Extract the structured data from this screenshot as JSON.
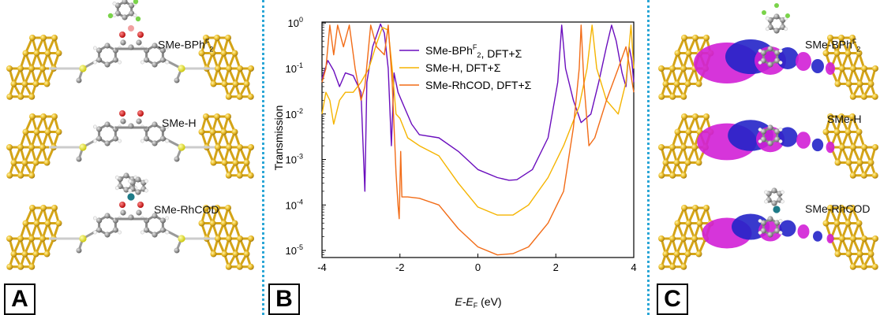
{
  "panels": {
    "a_letter": "A",
    "b_letter": "B",
    "c_letter": "C"
  },
  "molecules": {
    "bph": "SMe-BPh",
    "bph_sup": "F",
    "bph_sub": "2",
    "h": "SMe-H",
    "rhcod": "SMe-RhCOD"
  },
  "colors": {
    "gold": "#e8b923",
    "divider": "#2aa6d6",
    "density_pos": "#d21fd6",
    "density_neg": "#2323c8"
  },
  "chart_data": {
    "type": "line",
    "title": "",
    "xlabel": "E-E",
    "xlabel_sub": "F",
    "xlabel_unit": " (eV)",
    "ylabel": "Transmission",
    "xlim": [
      -4,
      4
    ],
    "ylim": [
      7e-06,
      1.05
    ],
    "yscale": "log",
    "xticks": [
      -4,
      -2,
      0,
      2,
      4
    ],
    "yticks": [
      {
        "value": 1,
        "label": "10",
        "exp": "0"
      },
      {
        "value": 0.1,
        "label": "10",
        "exp": "-1"
      },
      {
        "value": 0.01,
        "label": "10",
        "exp": "-2"
      },
      {
        "value": 0.001,
        "label": "10",
        "exp": "-3"
      },
      {
        "value": 0.0001,
        "label": "10",
        "exp": "-4"
      },
      {
        "value": 1e-05,
        "label": "10",
        "exp": "-5"
      }
    ],
    "grid": false,
    "legend_position": "top-center",
    "series": [
      {
        "name": "SMe-BPh",
        "name_sup": "F",
        "name_sub": "2",
        "name_rest": ", DFT+Σ",
        "color": "#6a0dbd",
        "points": [
          [
            -4.0,
            0.06
          ],
          [
            -3.85,
            0.15
          ],
          [
            -3.7,
            0.09
          ],
          [
            -3.55,
            0.04
          ],
          [
            -3.4,
            0.08
          ],
          [
            -3.2,
            0.07
          ],
          [
            -3.0,
            0.03
          ],
          [
            -2.9,
            0.0002
          ],
          [
            -2.85,
            0.05
          ],
          [
            -2.7,
            0.3
          ],
          [
            -2.5,
            0.95
          ],
          [
            -2.4,
            0.6
          ],
          [
            -2.3,
            0.1
          ],
          [
            -2.22,
            0.002
          ],
          [
            -2.15,
            0.08
          ],
          [
            -2.05,
            0.03
          ],
          [
            -1.9,
            0.015
          ],
          [
            -1.7,
            0.006
          ],
          [
            -1.5,
            0.0035
          ],
          [
            -1.0,
            0.003
          ],
          [
            -0.5,
            0.0015
          ],
          [
            0.0,
            0.0006
          ],
          [
            0.5,
            0.0004
          ],
          [
            0.8,
            0.00035
          ],
          [
            1.0,
            0.00036
          ],
          [
            1.4,
            0.0006
          ],
          [
            1.8,
            0.003
          ],
          [
            2.05,
            0.05
          ],
          [
            2.15,
            0.9
          ],
          [
            2.25,
            0.1
          ],
          [
            2.45,
            0.02
          ],
          [
            2.65,
            0.0065
          ],
          [
            2.9,
            0.01
          ],
          [
            3.1,
            0.05
          ],
          [
            3.3,
            0.3
          ],
          [
            3.43,
            0.9
          ],
          [
            3.55,
            0.4
          ],
          [
            3.7,
            0.08
          ],
          [
            3.8,
            0.04
          ],
          [
            3.88,
            0.3
          ],
          [
            3.95,
            0.15
          ],
          [
            4.0,
            0.05
          ]
        ]
      },
      {
        "name": "SMe-H",
        "name_rest": ", DFT+Σ",
        "color": "#f5b400",
        "points": [
          [
            -4.0,
            0.01
          ],
          [
            -3.9,
            0.03
          ],
          [
            -3.8,
            0.02
          ],
          [
            -3.7,
            0.006
          ],
          [
            -3.55,
            0.02
          ],
          [
            -3.4,
            0.03
          ],
          [
            -3.2,
            0.03
          ],
          [
            -3.0,
            0.05
          ],
          [
            -2.8,
            0.1
          ],
          [
            -2.6,
            0.35
          ],
          [
            -2.45,
            0.8
          ],
          [
            -2.3,
            0.7
          ],
          [
            -2.2,
            0.1
          ],
          [
            -2.1,
            0.01
          ],
          [
            -2.0,
            0.008
          ],
          [
            -1.8,
            0.003
          ],
          [
            -1.5,
            0.002
          ],
          [
            -1.0,
            0.0012
          ],
          [
            -0.5,
            0.0003
          ],
          [
            0.0,
            9e-05
          ],
          [
            0.5,
            6e-05
          ],
          [
            0.9,
            6e-05
          ],
          [
            1.3,
            0.0001
          ],
          [
            1.8,
            0.0004
          ],
          [
            2.2,
            0.002
          ],
          [
            2.6,
            0.015
          ],
          [
            2.8,
            0.1
          ],
          [
            2.93,
            0.9
          ],
          [
            3.05,
            0.1
          ],
          [
            3.3,
            0.02
          ],
          [
            3.6,
            0.01
          ],
          [
            3.8,
            0.05
          ],
          [
            3.93,
            0.9
          ],
          [
            4.0,
            0.1
          ]
        ]
      },
      {
        "name": "SMe-RhCOD",
        "name_rest": ", DFT+Σ",
        "color": "#f26c17",
        "points": [
          [
            -4.0,
            0.05
          ],
          [
            -3.9,
            0.1
          ],
          [
            -3.8,
            0.9
          ],
          [
            -3.7,
            0.2
          ],
          [
            -3.6,
            0.9
          ],
          [
            -3.45,
            0.3
          ],
          [
            -3.3,
            0.9
          ],
          [
            -3.15,
            0.1
          ],
          [
            -3.0,
            0.02
          ],
          [
            -2.9,
            0.04
          ],
          [
            -2.75,
            0.9
          ],
          [
            -2.6,
            0.3
          ],
          [
            -2.4,
            0.2
          ],
          [
            -2.3,
            0.9
          ],
          [
            -2.2,
            0.05
          ],
          [
            -2.1,
            0.0005
          ],
          [
            -2.05,
            0.0001
          ],
          [
            -2.02,
            5e-05
          ],
          [
            -1.98,
            0.0015
          ],
          [
            -1.95,
            0.00015
          ],
          [
            -1.8,
            0.00015
          ],
          [
            -1.5,
            0.00014
          ],
          [
            -1.0,
            0.0001
          ],
          [
            -0.5,
            3e-05
          ],
          [
            0.0,
            1.2e-05
          ],
          [
            0.5,
            8e-06
          ],
          [
            0.9,
            8.5e-06
          ],
          [
            1.3,
            1.2e-05
          ],
          [
            1.8,
            4e-05
          ],
          [
            2.2,
            0.0002
          ],
          [
            2.45,
            0.005
          ],
          [
            2.6,
            0.1
          ],
          [
            2.65,
            0.9
          ],
          [
            2.72,
            0.05
          ],
          [
            2.85,
            0.002
          ],
          [
            3.0,
            0.003
          ],
          [
            3.3,
            0.02
          ],
          [
            3.6,
            0.1
          ],
          [
            3.8,
            0.3
          ],
          [
            3.9,
            0.1
          ],
          [
            4.0,
            0.03
          ]
        ]
      }
    ]
  }
}
